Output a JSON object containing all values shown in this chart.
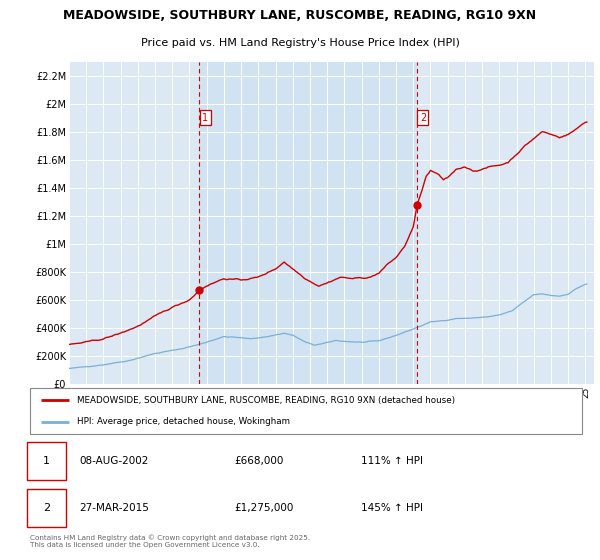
{
  "title1": "MEADOWSIDE, SOUTHBURY LANE, RUSCOMBE, READING, RG10 9XN",
  "title2": "Price paid vs. HM Land Registry's House Price Index (HPI)",
  "plot_bg": "#dce9f5",
  "ylim": [
    0,
    2300000
  ],
  "yticks": [
    0,
    200000,
    400000,
    600000,
    800000,
    1000000,
    1200000,
    1400000,
    1600000,
    1800000,
    2000000,
    2200000
  ],
  "ytick_labels": [
    "£0",
    "£200K",
    "£400K",
    "£600K",
    "£800K",
    "£1M",
    "£1.2M",
    "£1.4M",
    "£1.6M",
    "£1.8M",
    "£2M",
    "£2.2M"
  ],
  "sale1_date": 2002.58,
  "sale1_price": 668000,
  "sale2_date": 2015.23,
  "sale2_price": 1275000,
  "red_line_color": "#cc0000",
  "blue_line_color": "#7ab0d4",
  "annotation1_date": "08-AUG-2002",
  "annotation1_price": "£668,000",
  "annotation1_pct": "111% ↑ HPI",
  "annotation2_date": "27-MAR-2015",
  "annotation2_price": "£1,275,000",
  "annotation2_pct": "145% ↑ HPI",
  "legend_label1": "MEADOWSIDE, SOUTHBURY LANE, RUSCOMBE, READING, RG10 9XN (detached house)",
  "legend_label2": "HPI: Average price, detached house, Wokingham",
  "footer": "Contains HM Land Registry data © Crown copyright and database right 2025.\nThis data is licensed under the Open Government Licence v3.0.",
  "xmin": 1995,
  "xmax": 2025.5
}
